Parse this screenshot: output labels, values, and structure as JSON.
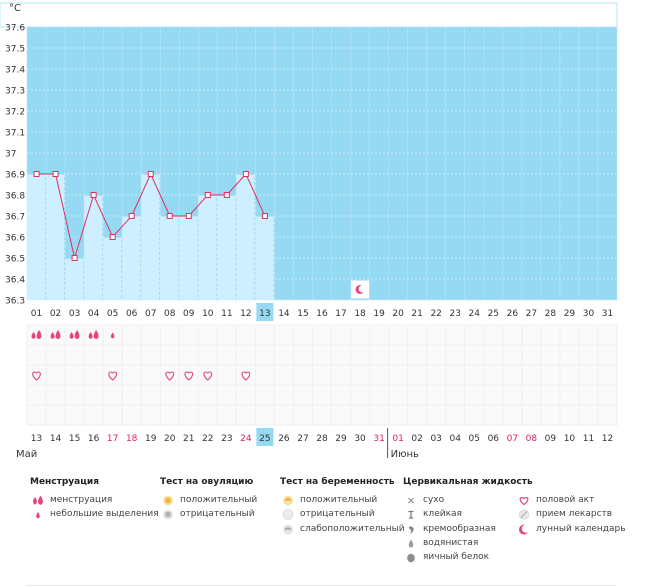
{
  "chart_data": {
    "type": "bar+line",
    "unit": "°C",
    "y_ticks": [
      "37.6",
      "37.5",
      "37.4",
      "37.3",
      "37.2",
      "37.1",
      "37",
      "36.9",
      "36.8",
      "36.7",
      "36.6",
      "36.5",
      "36.4",
      "36.3"
    ],
    "ylim": [
      36.3,
      37.6
    ],
    "cycle_days": [
      "01",
      "02",
      "03",
      "04",
      "05",
      "06",
      "07",
      "08",
      "09",
      "10",
      "11",
      "12",
      "13",
      "14",
      "15",
      "16",
      "17",
      "18",
      "19",
      "20",
      "21",
      "22",
      "23",
      "24",
      "25",
      "26",
      "27",
      "28",
      "29",
      "30",
      "31"
    ],
    "current_day_index": 12,
    "temperatures": [
      36.9,
      36.9,
      36.5,
      36.8,
      36.6,
      36.7,
      36.9,
      36.7,
      36.7,
      36.8,
      36.8,
      36.9,
      36.7
    ],
    "calendar_dates": [
      "13",
      "14",
      "15",
      "16",
      "17",
      "18",
      "19",
      "20",
      "21",
      "22",
      "23",
      "24",
      "25",
      "26",
      "27",
      "28",
      "29",
      "30",
      "31",
      "01",
      "02",
      "03",
      "04",
      "05",
      "06",
      "07",
      "08",
      "09",
      "10",
      "11",
      "12"
    ],
    "weekend_indices": [
      4,
      5,
      11,
      18,
      19,
      25,
      26
    ],
    "today_index": 12,
    "month_left": "Май",
    "month_right": "Июнь",
    "month_break_index": 19,
    "menstruation": [
      {
        "day_index": 0,
        "kind": "menstruation"
      },
      {
        "day_index": 1,
        "kind": "menstruation"
      },
      {
        "day_index": 2,
        "kind": "menstruation"
      },
      {
        "day_index": 3,
        "kind": "menstruation"
      },
      {
        "day_index": 4,
        "kind": "spotting"
      }
    ],
    "intercourse_days": [
      0,
      4,
      7,
      8,
      9,
      11
    ],
    "moon_day_index": 17,
    "moon_temp": 36.35,
    "colors": {
      "sky": "#95d9f3",
      "bar": "#cdefff",
      "bar_edge": "#9fd3ea",
      "line": "#e0305f",
      "pink": "#e8457a",
      "today": "#95d9f3",
      "weekend": "#e01f57",
      "text": "#333333"
    }
  },
  "legend": {
    "menstruation": {
      "title": "Менструация",
      "items": [
        {
          "label": "менструация",
          "icon": "drop-pair-icon"
        },
        {
          "label": "небольшие выделения",
          "icon": "small-drop-icon"
        }
      ]
    },
    "ovulation": {
      "title": "Тест на овуляцию",
      "items": [
        {
          "label": "положительный",
          "icon": "ovulation-positive-icon"
        },
        {
          "label": "отрицательный",
          "icon": "ovulation-negative-icon"
        }
      ]
    },
    "pregnancy": {
      "title": "Тест на беременность",
      "items": [
        {
          "label": "положительный",
          "icon": "pregnancy-positive-icon"
        },
        {
          "label": "отрицательный",
          "icon": "pregnancy-negative-icon"
        },
        {
          "label": "слабоположительный",
          "icon": "pregnancy-weak-icon"
        }
      ]
    },
    "cervical": {
      "title": "Цервикальная жидкость",
      "items": [
        {
          "label": "сухо",
          "icon": "dry-icon"
        },
        {
          "label": "клейкая",
          "icon": "sticky-icon"
        },
        {
          "label": "кремообразная",
          "icon": "creamy-icon"
        },
        {
          "label": "водянистая",
          "icon": "watery-icon"
        },
        {
          "label": "яичный белок",
          "icon": "egg-white-icon"
        }
      ]
    },
    "other": {
      "items": [
        {
          "label": "половой акт",
          "icon": "heart-icon"
        },
        {
          "label": "прием лекарств",
          "icon": "pill-icon"
        },
        {
          "label": "лунный календарь",
          "icon": "moon-icon"
        }
      ]
    }
  }
}
